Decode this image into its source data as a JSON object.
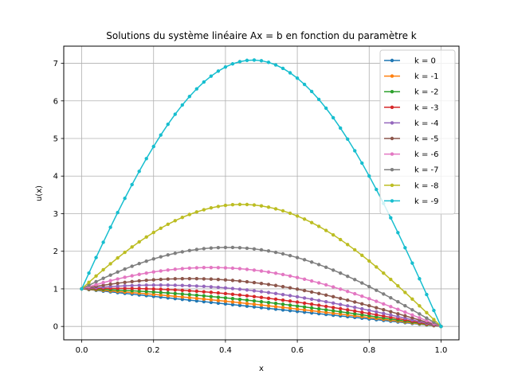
{
  "chart_data": {
    "type": "line",
    "title": "Solutions du système linéaire Ax = b en fonction du paramètre k",
    "xlabel": "x",
    "ylabel": "u(x)",
    "xlim": [
      -0.05,
      1.05
    ],
    "ylim": [
      -0.356,
      7.456
    ],
    "xticks": [
      0.0,
      0.2,
      0.4,
      0.6,
      0.8,
      1.0
    ],
    "xtick_labels": [
      "0.0",
      "0.2",
      "0.4",
      "0.6",
      "0.8",
      "1.0"
    ],
    "yticks": [
      0,
      1,
      2,
      3,
      4,
      5,
      6,
      7
    ],
    "ytick_labels": [
      "0",
      "1",
      "2",
      "3",
      "4",
      "5",
      "6",
      "7"
    ],
    "grid": true,
    "legend_position": "top-right",
    "num_points": 51,
    "series": [
      {
        "name": "k = 0",
        "k": 0,
        "color": "#1f77b4"
      },
      {
        "name": "k = -1",
        "k": -1,
        "color": "#ff7f0e"
      },
      {
        "name": "k = -2",
        "k": -2,
        "color": "#2ca02c"
      },
      {
        "name": "k = -3",
        "k": -3,
        "color": "#d62728"
      },
      {
        "name": "k = -4",
        "k": -4,
        "color": "#9467bd"
      },
      {
        "name": "k = -5",
        "k": -5,
        "color": "#8c564b"
      },
      {
        "name": "k = -6",
        "k": -6,
        "color": "#e377c2"
      },
      {
        "name": "k = -7",
        "k": -7,
        "color": "#7f7f7f"
      },
      {
        "name": "k = -8",
        "k": -8,
        "color": "#bcbd22"
      },
      {
        "name": "k = -9",
        "k": -9,
        "color": "#17becf"
      }
    ]
  }
}
